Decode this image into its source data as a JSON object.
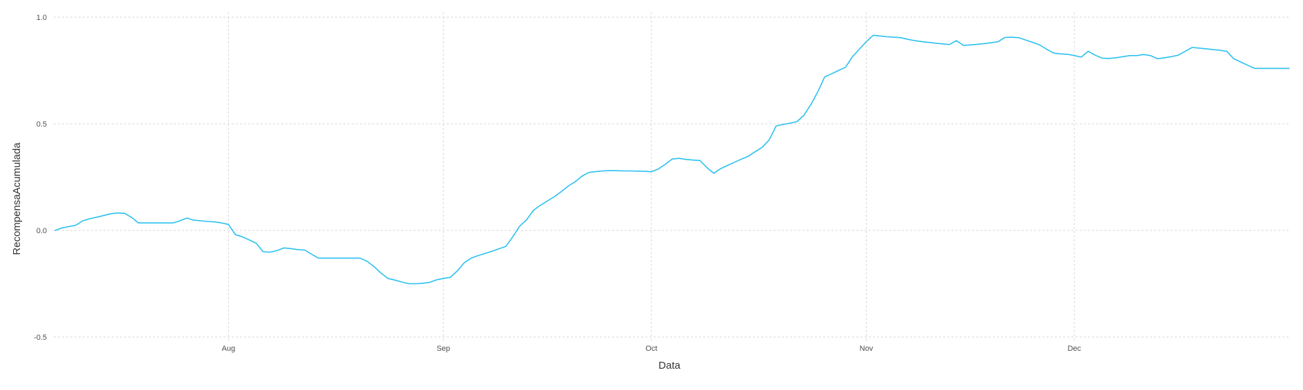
{
  "chart_data": {
    "type": "line",
    "xlabel": "Data",
    "ylabel": "RecompensaAcumulada",
    "x_ticks": [
      {
        "label": "Aug",
        "day": 31
      },
      {
        "label": "Sep",
        "day": 62
      },
      {
        "label": "Oct",
        "day": 92
      },
      {
        "label": "Nov",
        "day": 123
      },
      {
        "label": "Dec",
        "day": 153
      }
    ],
    "y_ticks": [
      {
        "label": "-0.5",
        "value": -0.5
      },
      {
        "label": "0.0",
        "value": 0.0
      },
      {
        "label": "0.5",
        "value": 0.5
      },
      {
        "label": "1.0",
        "value": 1.0
      }
    ],
    "ylim": [
      -0.5,
      1.0
    ],
    "xlim": [
      6,
      184
    ],
    "grid": true,
    "colors": {
      "line": "#29c0f0",
      "grid": "#d6d6d6"
    },
    "series": [
      {
        "values": [
          [
            6,
            0.0
          ],
          [
            7,
            0.012
          ],
          [
            8,
            0.018
          ],
          [
            9,
            0.025
          ],
          [
            10,
            0.045
          ],
          [
            11,
            0.055
          ],
          [
            12,
            0.062
          ],
          [
            13,
            0.07
          ],
          [
            14,
            0.078
          ],
          [
            15,
            0.082
          ],
          [
            16,
            0.08
          ],
          [
            17,
            0.062
          ],
          [
            18,
            0.035
          ],
          [
            19,
            0.035
          ],
          [
            20,
            0.035
          ],
          [
            21,
            0.035
          ],
          [
            22,
            0.035
          ],
          [
            23,
            0.035
          ],
          [
            24,
            0.045
          ],
          [
            25,
            0.058
          ],
          [
            26,
            0.048
          ],
          [
            27,
            0.045
          ],
          [
            28,
            0.042
          ],
          [
            29,
            0.04
          ],
          [
            30,
            0.035
          ],
          [
            31,
            0.028
          ],
          [
            32,
            -0.02
          ],
          [
            33,
            -0.03
          ],
          [
            34,
            -0.045
          ],
          [
            35,
            -0.06
          ],
          [
            36,
            -0.1
          ],
          [
            37,
            -0.102
          ],
          [
            38,
            -0.095
          ],
          [
            39,
            -0.082
          ],
          [
            40,
            -0.085
          ],
          [
            41,
            -0.09
          ],
          [
            42,
            -0.092
          ],
          [
            43,
            -0.112
          ],
          [
            44,
            -0.13
          ],
          [
            45,
            -0.13
          ],
          [
            46,
            -0.13
          ],
          [
            47,
            -0.13
          ],
          [
            48,
            -0.13
          ],
          [
            49,
            -0.13
          ],
          [
            50,
            -0.13
          ],
          [
            51,
            -0.145
          ],
          [
            52,
            -0.17
          ],
          [
            53,
            -0.2
          ],
          [
            54,
            -0.225
          ],
          [
            55,
            -0.233
          ],
          [
            56,
            -0.242
          ],
          [
            57,
            -0.25
          ],
          [
            58,
            -0.25
          ],
          [
            59,
            -0.248
          ],
          [
            60,
            -0.244
          ],
          [
            61,
            -0.232
          ],
          [
            62,
            -0.225
          ],
          [
            63,
            -0.22
          ],
          [
            64,
            -0.19
          ],
          [
            65,
            -0.152
          ],
          [
            66,
            -0.13
          ],
          [
            67,
            -0.118
          ],
          [
            68,
            -0.108
          ],
          [
            69,
            -0.098
          ],
          [
            70,
            -0.086
          ],
          [
            71,
            -0.075
          ],
          [
            72,
            -0.03
          ],
          [
            73,
            0.02
          ],
          [
            74,
            0.05
          ],
          [
            75,
            0.095
          ],
          [
            76,
            0.118
          ],
          [
            77,
            0.138
          ],
          [
            78,
            0.158
          ],
          [
            79,
            0.182
          ],
          [
            80,
            0.208
          ],
          [
            81,
            0.228
          ],
          [
            82,
            0.255
          ],
          [
            83,
            0.272
          ],
          [
            84,
            0.276
          ],
          [
            85,
            0.279
          ],
          [
            86,
            0.281
          ],
          [
            87,
            0.28
          ],
          [
            88,
            0.279
          ],
          [
            89,
            0.279
          ],
          [
            90,
            0.278
          ],
          [
            91,
            0.277
          ],
          [
            92,
            0.275
          ],
          [
            93,
            0.288
          ],
          [
            94,
            0.31
          ],
          [
            95,
            0.335
          ],
          [
            96,
            0.338
          ],
          [
            97,
            0.333
          ],
          [
            98,
            0.33
          ],
          [
            99,
            0.328
          ],
          [
            100,
            0.295
          ],
          [
            101,
            0.268
          ],
          [
            102,
            0.29
          ],
          [
            103,
            0.305
          ],
          [
            104,
            0.32
          ],
          [
            105,
            0.335
          ],
          [
            106,
            0.348
          ],
          [
            107,
            0.37
          ],
          [
            108,
            0.39
          ],
          [
            109,
            0.425
          ],
          [
            110,
            0.49
          ],
          [
            111,
            0.497
          ],
          [
            112,
            0.503
          ],
          [
            113,
            0.51
          ],
          [
            114,
            0.54
          ],
          [
            115,
            0.59
          ],
          [
            116,
            0.65
          ],
          [
            117,
            0.72
          ],
          [
            118,
            0.735
          ],
          [
            119,
            0.75
          ],
          [
            120,
            0.765
          ],
          [
            121,
            0.815
          ],
          [
            122,
            0.85
          ],
          [
            123,
            0.885
          ],
          [
            124,
            0.915
          ],
          [
            125,
            0.912
          ],
          [
            126,
            0.908
          ],
          [
            127,
            0.906
          ],
          [
            128,
            0.904
          ],
          [
            129,
            0.896
          ],
          [
            130,
            0.89
          ],
          [
            131,
            0.885
          ],
          [
            132,
            0.882
          ],
          [
            133,
            0.878
          ],
          [
            134,
            0.875
          ],
          [
            135,
            0.872
          ],
          [
            136,
            0.89
          ],
          [
            137,
            0.868
          ],
          [
            138,
            0.87
          ],
          [
            139,
            0.873
          ],
          [
            140,
            0.876
          ],
          [
            141,
            0.88
          ],
          [
            142,
            0.885
          ],
          [
            143,
            0.905
          ],
          [
            144,
            0.906
          ],
          [
            145,
            0.904
          ],
          [
            146,
            0.893
          ],
          [
            147,
            0.882
          ],
          [
            148,
            0.87
          ],
          [
            149,
            0.85
          ],
          [
            150,
            0.832
          ],
          [
            151,
            0.828
          ],
          [
            152,
            0.826
          ],
          [
            153,
            0.82
          ],
          [
            154,
            0.813
          ],
          [
            155,
            0.84
          ],
          [
            156,
            0.822
          ],
          [
            157,
            0.808
          ],
          [
            158,
            0.806
          ],
          [
            159,
            0.81
          ],
          [
            160,
            0.815
          ],
          [
            161,
            0.82
          ],
          [
            162,
            0.82
          ],
          [
            163,
            0.825
          ],
          [
            164,
            0.82
          ],
          [
            165,
            0.805
          ],
          [
            166,
            0.81
          ],
          [
            167,
            0.815
          ],
          [
            168,
            0.822
          ],
          [
            169,
            0.84
          ],
          [
            170,
            0.858
          ],
          [
            171,
            0.855
          ],
          [
            172,
            0.852
          ],
          [
            173,
            0.848
          ],
          [
            174,
            0.845
          ],
          [
            175,
            0.84
          ],
          [
            176,
            0.805
          ],
          [
            177,
            0.79
          ],
          [
            178,
            0.775
          ],
          [
            179,
            0.76
          ],
          [
            180,
            0.76
          ],
          [
            181,
            0.76
          ],
          [
            182,
            0.76
          ],
          [
            183,
            0.76
          ],
          [
            184,
            0.76
          ]
        ]
      }
    ]
  }
}
